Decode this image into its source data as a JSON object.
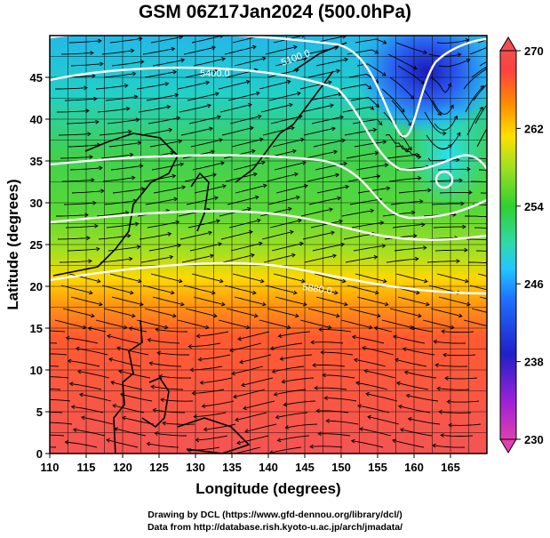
{
  "title": "GSM 06Z17Jan2024 (500.0hPa)",
  "axes": {
    "xlabel": "Longitude (degrees)",
    "ylabel": "Latitude  (degrees)",
    "x_ticks": [
      "110",
      "115",
      "120",
      "125",
      "130",
      "135",
      "140",
      "145",
      "150",
      "155",
      "160",
      "165"
    ],
    "y_ticks": [
      "0",
      "5",
      "10",
      "15",
      "20",
      "25",
      "30",
      "35",
      "40",
      "45"
    ]
  },
  "colorbar": {
    "ticks": [
      "230",
      "238",
      "246",
      "254",
      "262",
      "270"
    ],
    "min": 230,
    "max": 270,
    "colors": [
      "#e040b0",
      "#9b20d8",
      "#2020c8",
      "#1e70ff",
      "#22c8ff",
      "#30d8b0",
      "#30d030",
      "#a0e020",
      "#ffe000",
      "#ff9000",
      "#ff4040",
      "#f05050"
    ]
  },
  "contour_labels": [
    "5400.0",
    "5100.0",
    "5400.0",
    "5880.0"
  ],
  "footer": {
    "line1": "Drawing by DCL (https://www.gfd-dennou.org/library/dcl/)",
    "line2": "Data from http://database.rish.kyoto-u.ac.jp/arch/jmadata/"
  }
}
